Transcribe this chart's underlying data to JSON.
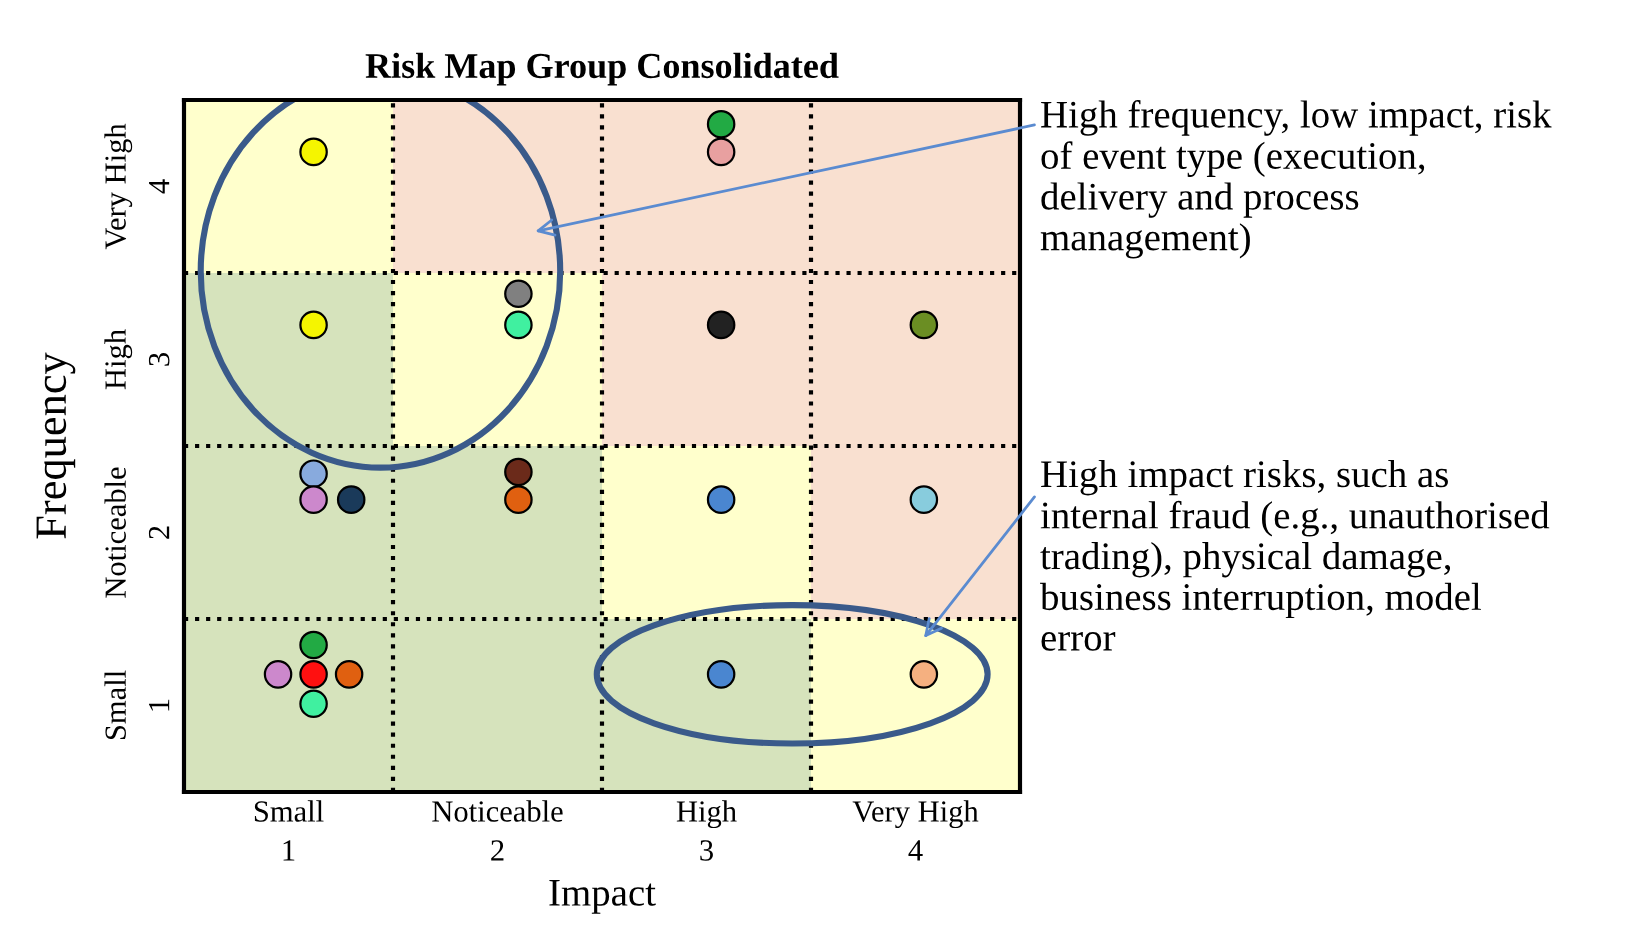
{
  "chart_data": {
    "type": "scatter",
    "title": "Risk Map Group Consolidated",
    "xlabel": "Impact",
    "ylabel": "Frequency",
    "xlim": [
      0.5,
      4.5
    ],
    "ylim": [
      0.5,
      4.5
    ],
    "xticks": [
      1,
      2,
      3,
      4
    ],
    "yticks": [
      1,
      2,
      3,
      4
    ],
    "grid": true,
    "marker": "circle",
    "legend": false,
    "x": [
      1.12,
      3.07,
      3.07,
      1.12,
      2.1,
      2.1,
      3.07,
      4.04,
      1.12,
      1.12,
      1.3,
      2.1,
      2.1,
      3.07,
      4.04,
      1.12,
      0.95,
      1.12,
      1.29,
      1.12,
      3.07,
      4.04
    ],
    "values": [
      4.2,
      4.36,
      4.2,
      3.2,
      3.38,
      3.2,
      3.2,
      3.2,
      2.34,
      2.19,
      2.19,
      2.35,
      2.19,
      2.19,
      2.19,
      1.35,
      1.18,
      1.18,
      1.18,
      1.01,
      1.18,
      1.18
    ],
    "colors": [
      "#f5f500",
      "#22aa44",
      "#e8a0a0",
      "#f5f500",
      "#808080",
      "#40f0a0",
      "#222222",
      "#6b8e23",
      "#88aadd",
      "#cc88cc",
      "#1a3a5a",
      "#6b2a1a",
      "#e06010",
      "#4a86d0",
      "#88ccdd",
      "#22aa44",
      "#cc88cc",
      "#ff1010",
      "#e06010",
      "#40f0a0",
      "#4a86d0",
      "#f5b080"
    ],
    "annotations": [
      "High frequency, low impact, risk\nof event type (execution,\ndelivery and process\nmanagement)",
      "High impact risks, such as\ninternal fraud (e.g., unauthorised\ntrading), physical damage,\nbusiness interruption, model\nerror",
      "Small",
      "Noticeable",
      "High",
      "Very High",
      "Small",
      "Noticeable",
      "High",
      "Very High"
    ]
  }
}
